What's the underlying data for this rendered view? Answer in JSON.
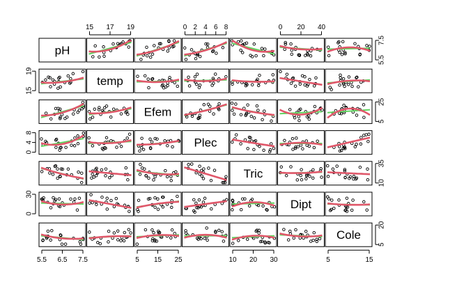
{
  "chart_data": {
    "type": "scatter-matrix",
    "variables": [
      "pH",
      "temp",
      "Efem",
      "Plec",
      "Tric",
      "Dipt",
      "Cole"
    ],
    "axis_ticks": {
      "top": [
        {
          "col": 1,
          "labels": [
            "15",
            "17",
            "19"
          ]
        },
        {
          "col": 3,
          "labels": [
            "0",
            "2",
            "4",
            "6",
            "8"
          ]
        },
        {
          "col": 5,
          "labels": [
            "0",
            "20",
            "40"
          ]
        }
      ],
      "bottom": [
        {
          "col": 0,
          "labels": [
            "5.5",
            "6.5",
            "7.5"
          ]
        },
        {
          "col": 2,
          "labels": [
            "5",
            "15",
            "25"
          ]
        },
        {
          "col": 4,
          "labels": [
            "10",
            "20",
            "30"
          ]
        },
        {
          "col": 6,
          "labels": [
            "5",
            "15"
          ]
        }
      ],
      "left": [
        {
          "row": 1,
          "labels": [
            "15",
            "19"
          ]
        },
        {
          "row": 3,
          "labels": [
            "0",
            "4",
            "8"
          ]
        },
        {
          "row": 5,
          "labels": [
            "0",
            "30"
          ]
        }
      ],
      "right": [
        {
          "row": 0,
          "labels": [
            "5.5",
            "7.5"
          ]
        },
        {
          "row": 2,
          "labels": [
            "5",
            "25"
          ]
        },
        {
          "row": 4,
          "labels": [
            "10",
            "35"
          ]
        },
        {
          "row": 6,
          "labels": [
            "5",
            "20"
          ]
        }
      ]
    },
    "colors": {
      "linear_fit": "#5fd35f",
      "smooth_fit": "#e0576a",
      "points": "#000000"
    }
  }
}
